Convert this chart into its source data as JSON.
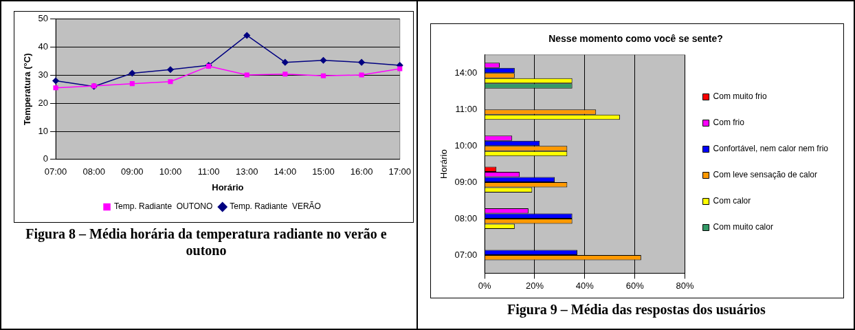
{
  "chart_data": [
    {
      "type": "line",
      "xlabel": "Horário",
      "ylabel": "Temperatura (°C)",
      "categories": [
        "07:00",
        "08:00",
        "09:00",
        "10:00",
        "11:00",
        "13:00",
        "14:00",
        "15:00",
        "16:00",
        "17:00"
      ],
      "series": [
        {
          "name": "Temp. Radiante  VERÃO",
          "color": "#000080",
          "marker": "diamond",
          "values": [
            28,
            26,
            30.7,
            32,
            33.5,
            44.2,
            34.6,
            35.3,
            34.6,
            33.5
          ]
        },
        {
          "name": "Temp. Radiante  OUTONO",
          "color": "#ff00ff",
          "marker": "square",
          "values": [
            25.5,
            26.2,
            27,
            27.7,
            33.2,
            30.1,
            30.4,
            29.8,
            30.1,
            32.3
          ]
        }
      ],
      "ylim": [
        0,
        50
      ],
      "yticks": [
        0,
        10,
        20,
        30,
        40,
        50
      ],
      "grid": "y",
      "legend": "bottom",
      "line_style": "solid",
      "annotations": [
        "Figura 8 – Média horária da temperatura radiante no verão e outono"
      ]
    },
    {
      "type": "bar",
      "orientation": "horizontal",
      "title": "Nesse momento como você se sente?",
      "ylabel": "Horário",
      "categories": [
        "14:00",
        "11:00",
        "10:00",
        "09:00",
        "08:00",
        "07:00"
      ],
      "series": [
        {
          "name": "Com muito frio",
          "color": "#ff0000",
          "values": [
            null,
            null,
            null,
            4.7,
            null,
            null
          ]
        },
        {
          "name": "Com frio",
          "color": "#ff00ff",
          "values": [
            6,
            null,
            11,
            14,
            17.5,
            null
          ]
        },
        {
          "name": "Confortável, nem calor nem frio",
          "color": "#0000ff",
          "values": [
            12,
            null,
            22,
            28,
            35,
            37
          ]
        },
        {
          "name": "Com leve sensação de calor",
          "color": "#ff9900",
          "values": [
            12,
            44.5,
            33,
            33,
            35,
            62.5
          ]
        },
        {
          "name": "Com calor",
          "color": "#ffff00",
          "values": [
            35,
            54,
            33,
            19,
            12,
            null
          ]
        },
        {
          "name": "Com muito calor",
          "color": "#339966",
          "values": [
            35,
            null,
            null,
            null,
            null,
            null
          ]
        }
      ],
      "xlim": [
        0,
        80
      ],
      "xticks": [
        {
          "value": 0,
          "label": "0%"
        },
        {
          "value": 20,
          "label": "20%"
        },
        {
          "value": 40,
          "label": "40%"
        },
        {
          "value": 60,
          "label": "60%"
        },
        {
          "value": 80,
          "label": "80%"
        }
      ],
      "grid": "x",
      "legend": "right",
      "annotations": [
        "Figura 9 – Média das respostas dos usuários"
      ]
    }
  ]
}
